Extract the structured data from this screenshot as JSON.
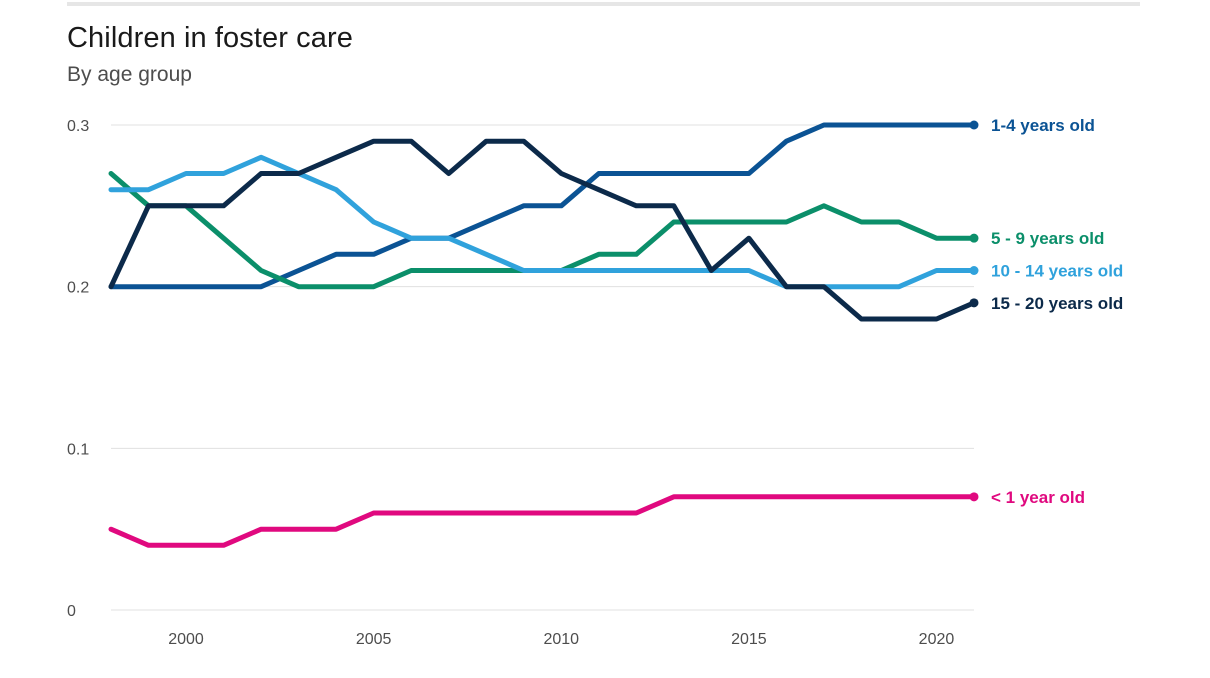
{
  "title": "Children in foster care",
  "subtitle": "By age group",
  "colors": {
    "gridline": "#e0e0e0",
    "tick_text": "#4d4d4d",
    "title": "#1a1a1a"
  },
  "chart_data": {
    "type": "line",
    "title": "Children in foster care",
    "subtitle": "By age group",
    "xlabel": "",
    "ylabel": "",
    "x": [
      1998,
      1999,
      2000,
      2001,
      2002,
      2003,
      2004,
      2005,
      2006,
      2007,
      2008,
      2009,
      2010,
      2011,
      2012,
      2013,
      2014,
      2015,
      2016,
      2017,
      2018,
      2019,
      2020,
      2021
    ],
    "xlim": [
      1998,
      2021
    ],
    "ylim": [
      0,
      0.3
    ],
    "x_ticks": [
      2000,
      2005,
      2010,
      2015,
      2020
    ],
    "x_tick_labels": [
      "2000",
      "2005",
      "2010",
      "2015",
      "2020"
    ],
    "y_ticks": [
      0,
      0.1,
      0.2,
      0.3
    ],
    "y_tick_labels": [
      "0",
      "0.1",
      "0.2",
      "0.3"
    ],
    "grid": true,
    "legend": "direct labels at line ends",
    "series": [
      {
        "name": "1-4 years old",
        "color": "#0b5394",
        "values": [
          0.2,
          0.2,
          0.2,
          0.2,
          0.2,
          0.21,
          0.22,
          0.22,
          0.23,
          0.23,
          0.24,
          0.25,
          0.25,
          0.27,
          0.27,
          0.27,
          0.27,
          0.27,
          0.29,
          0.3,
          0.3,
          0.3,
          0.3,
          0.3
        ]
      },
      {
        "name": "5 - 9 years old",
        "color": "#0b8f6a",
        "values": [
          0.27,
          0.25,
          0.25,
          0.23,
          0.21,
          0.2,
          0.2,
          0.2,
          0.21,
          0.21,
          0.21,
          0.21,
          0.21,
          0.22,
          0.22,
          0.24,
          0.24,
          0.24,
          0.24,
          0.25,
          0.24,
          0.24,
          0.23,
          0.23
        ]
      },
      {
        "name": "10 - 14 years old",
        "color": "#30a2dc",
        "values": [
          0.26,
          0.26,
          0.27,
          0.27,
          0.28,
          0.27,
          0.26,
          0.24,
          0.23,
          0.23,
          0.22,
          0.21,
          0.21,
          0.21,
          0.21,
          0.21,
          0.21,
          0.21,
          0.2,
          0.2,
          0.2,
          0.2,
          0.21,
          0.21
        ]
      },
      {
        "name": "15 - 20 years old",
        "color": "#0c2a4a",
        "values": [
          0.2,
          0.25,
          0.25,
          0.25,
          0.27,
          0.27,
          0.28,
          0.29,
          0.29,
          0.27,
          0.29,
          0.29,
          0.27,
          0.26,
          0.25,
          0.25,
          0.21,
          0.23,
          0.2,
          0.2,
          0.18,
          0.18,
          0.18,
          0.19
        ]
      },
      {
        "name": "< 1 year old",
        "color": "#e0097f",
        "values": [
          0.05,
          0.04,
          0.04,
          0.04,
          0.05,
          0.05,
          0.05,
          0.06,
          0.06,
          0.06,
          0.06,
          0.06,
          0.06,
          0.06,
          0.06,
          0.07,
          0.07,
          0.07,
          0.07,
          0.07,
          0.07,
          0.07,
          0.07,
          0.07
        ]
      }
    ]
  }
}
